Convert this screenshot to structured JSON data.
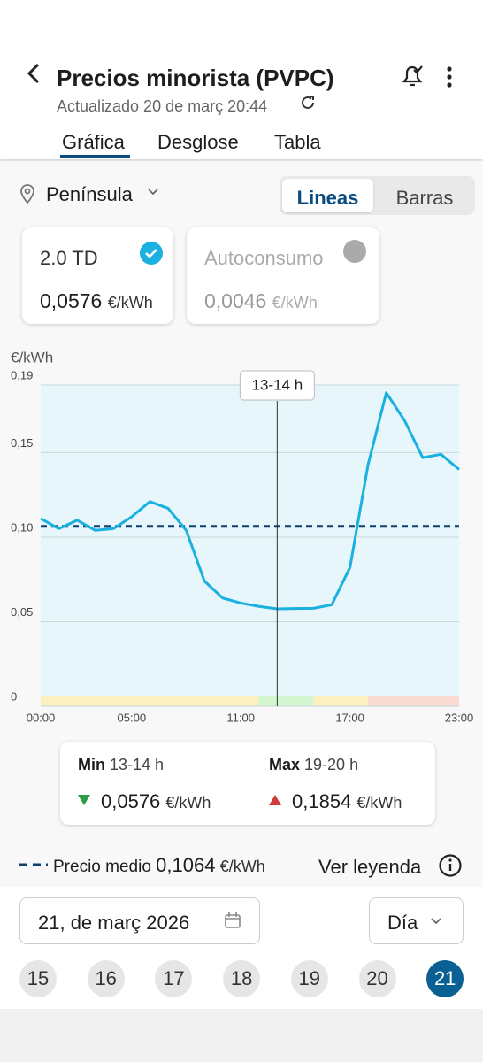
{
  "header": {
    "title": "Precios minorista (PVPC)",
    "subtitle": "Actualizado 20 de març 20:44"
  },
  "tabs": [
    "Gráfica",
    "Desglose",
    "Tabla"
  ],
  "region": "Península",
  "toggle": [
    "Lineas",
    "Barras"
  ],
  "cards": [
    {
      "name": "2.0 TD",
      "price": "0,0576",
      "unit": "€/kWh"
    },
    {
      "name": "Autoconsumo",
      "price": "0,0046",
      "unit": "€/kWh"
    }
  ],
  "chart_data": {
    "type": "line",
    "y_label": "€/kWh",
    "x": [
      0,
      1,
      2,
      3,
      4,
      5,
      6,
      7,
      8,
      9,
      10,
      11,
      12,
      13,
      14,
      15,
      16,
      17,
      18,
      19,
      20,
      21,
      22,
      23
    ],
    "series": [
      {
        "color": "#1ab0e0",
        "values": [
          0.111,
          0.105,
          0.11,
          0.104,
          0.105,
          0.112,
          0.121,
          0.117,
          0.104,
          0.074,
          0.064,
          0.061,
          0.059,
          0.0576,
          0.0578,
          0.0579,
          0.06,
          0.082,
          0.143,
          0.1854,
          0.169,
          0.147,
          0.149,
          0.14
        ]
      }
    ],
    "xlim": [
      0,
      23
    ],
    "xticks": [
      {
        "value": 0,
        "label": "00:00"
      },
      {
        "value": 5,
        "label": "05:00"
      },
      {
        "value": 11,
        "label": "11:00"
      },
      {
        "value": 17,
        "label": "17:00"
      },
      {
        "value": 23,
        "label": "23:00"
      }
    ],
    "ylim": [
      0,
      0.19
    ],
    "yticks": [
      {
        "value": 0,
        "label": "0"
      },
      {
        "value": 0.05,
        "label": "0,05"
      },
      {
        "value": 0.1,
        "label": "0,10"
      },
      {
        "value": 0.15,
        "label": "0,15"
      },
      {
        "value": 0.19,
        "label": "0,19"
      }
    ],
    "grid": true,
    "reference_line": {
      "value": 0.1064,
      "color": "#0d3f6e"
    },
    "bands": [
      {
        "from": 0,
        "to": 12,
        "color": "#fbf0bf"
      },
      {
        "from": 12,
        "to": 15,
        "color": "#d3f5cf"
      },
      {
        "from": 15,
        "to": 18,
        "color": "#fbf0bf"
      },
      {
        "from": 18,
        "to": 23,
        "color": "#fbdcd2"
      }
    ],
    "cursor_x": 13,
    "cursor_label": "13-14 h"
  },
  "summary": {
    "min_label": "Min",
    "min_hours": "13-14 h",
    "min_price": "0,0576",
    "max_label": "Max",
    "max_hours": "19-20 h",
    "max_price": "0,1854",
    "unit": "€/kWh"
  },
  "average": {
    "label": "Precio medio",
    "price": "0,1064",
    "unit": "€/kWh"
  },
  "legend_link": "Ver leyenda",
  "date": "21, de març 2026",
  "period": "Día",
  "days": [
    "15",
    "16",
    "17",
    "18",
    "19",
    "20",
    "21"
  ]
}
